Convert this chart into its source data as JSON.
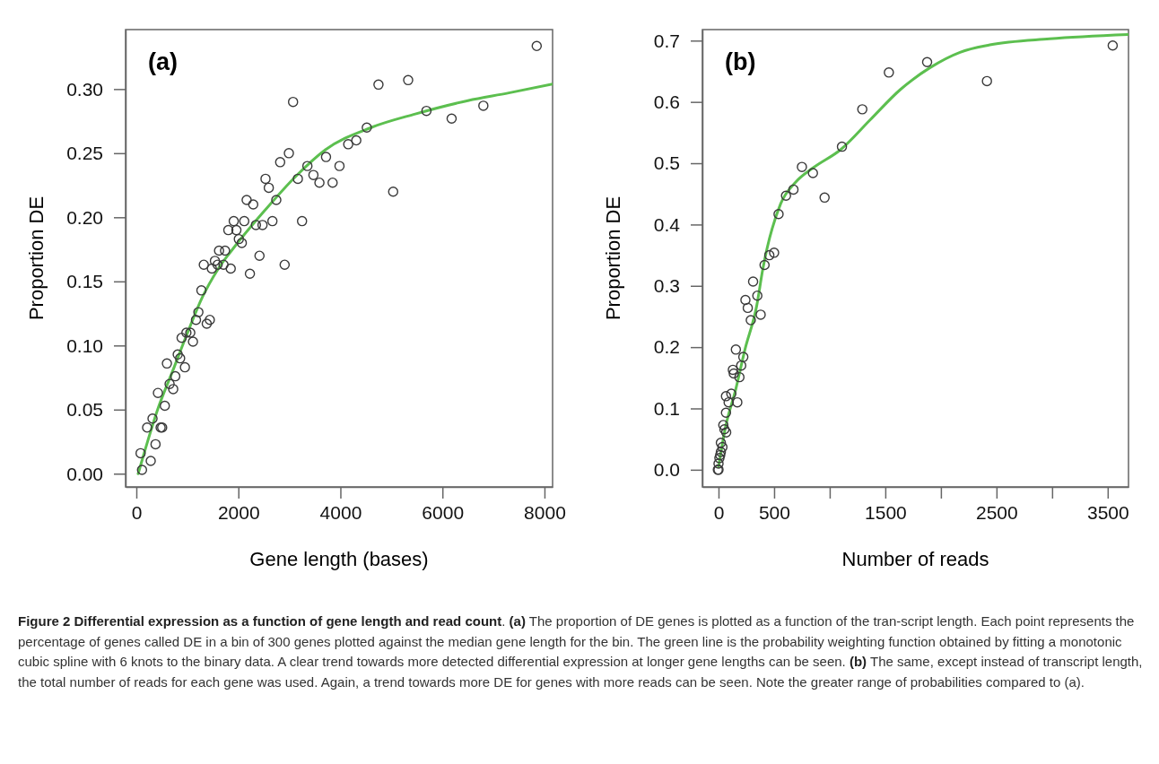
{
  "chart_data": [
    {
      "type": "scatter",
      "title": "(a)",
      "xlabel": "Gene length (bases)",
      "ylabel": "Proportion DE",
      "marker": "circle",
      "xlim": [
        -211,
        8159
      ],
      "ylim": [
        -0.0103,
        0.3464
      ],
      "xticks": [
        0,
        2000,
        4000,
        6000,
        8000
      ],
      "yticks": [
        {
          "value": 0,
          "label": "0.00"
        },
        {
          "value": 0.05,
          "label": "0.05"
        },
        {
          "value": 0.1,
          "label": "0.10"
        },
        {
          "value": 0.15,
          "label": "0.15"
        },
        {
          "value": 0.2,
          "label": "0.20"
        },
        {
          "value": 0.25,
          "label": "0.25"
        },
        {
          "value": 0.3,
          "label": "0.30"
        }
      ],
      "series": [
        {
          "color": "#3a3a3a",
          "x": [
            111,
            83,
            282,
            211,
            317,
            376,
            476,
            506,
            423,
            558,
            599,
            652,
            722,
            763,
            811,
            858,
            952,
            887,
            981,
            1057,
            1110,
            1169,
            1216,
            1380,
            1440,
            1275,
            1322,
            1480,
            1540,
            1592,
            1709,
            1850,
            2226,
            2414,
            2907,
            1621,
            1739,
            2009,
            2067,
            1803,
            1961,
            2344,
            2473,
            1909,
            2115,
            2667,
            3248,
            2162,
            2291,
            2743,
            2532,
            2596,
            3166,
            3589,
            3847,
            3471,
            3353,
            3982,
            3718,
            2819,
            2990,
            5034,
            4153,
            4311,
            4517,
            3072,
            5686,
            6180,
            6802,
            4746,
            5328,
            7848
          ],
          "values": [
            0.003,
            0.016,
            0.01,
            0.036,
            0.043,
            0.023,
            0.036,
            0.036,
            0.063,
            0.053,
            0.086,
            0.07,
            0.066,
            0.076,
            0.093,
            0.09,
            0.083,
            0.106,
            0.11,
            0.11,
            0.103,
            0.12,
            0.126,
            0.117,
            0.12,
            0.143,
            0.163,
            0.16,
            0.166,
            0.163,
            0.163,
            0.16,
            0.156,
            0.17,
            0.163,
            0.174,
            0.174,
            0.183,
            0.18,
            0.19,
            0.19,
            0.194,
            0.194,
            0.197,
            0.197,
            0.197,
            0.197,
            0.2135,
            0.21,
            0.2135,
            0.23,
            0.223,
            0.23,
            0.227,
            0.227,
            0.233,
            0.24,
            0.24,
            0.247,
            0.243,
            0.25,
            0.22,
            0.257,
            0.26,
            0.27,
            0.29,
            0.283,
            0.277,
            0.287,
            0.3035,
            0.307,
            0.3336
          ]
        },
        {
          "type": "line",
          "marker": "none",
          "color": "#5cbf4f",
          "x": [
            35,
            182,
            417,
            711,
            1004,
            1298,
            1592,
            1944,
            2532,
            3119,
            3706,
            4600,
            5468,
            6500,
            7300,
            8159
          ],
          "values": [
            0.0,
            0.02,
            0.05,
            0.08,
            0.11,
            0.138,
            0.159,
            0.178,
            0.206,
            0.2317,
            0.2527,
            0.27,
            0.2806,
            0.291,
            0.297,
            0.304
          ]
        }
      ],
      "annotations": [
        "Figure 2 Differential expression as a function of gene length and read count",
        ". ",
        "(a)",
        " The proportion of DE genes is plotted as a function of the tran-script length. Each point represents the percentage of genes called DE in a bin of 300 genes plotted against the median gene length for the bin. The green line is the probability weighting function obtained by fitting a monotonic cubic spline with 6 knots to the binary data. A clear trend towards more detected differential expression at longer gene lengths can be seen. ",
        "(b)",
        " The same, except instead of transcript length, the total number of reads for each gene was used. Again, a trend towards more DE for genes with more reads can be seen. Note the greater range of probabilities compared to (a)."
      ]
    },
    {
      "type": "scatter",
      "title": "(b)",
      "xlabel": "Number of reads",
      "ylabel": "Proportion DE",
      "marker": "circle",
      "xlim": [
        -145,
        3687
      ],
      "ylim": [
        -0.028,
        0.718
      ],
      "xticks": [
        0,
        500,
        {
          "value": 1000,
          "label": null
        },
        1500,
        {
          "value": 2000,
          "label": null
        },
        2500,
        {
          "value": 3000,
          "label": null
        },
        3500
      ],
      "yticks": [
        {
          "value": 0,
          "label": "0.0"
        },
        0.1,
        0.2,
        0.3,
        0.4,
        0.5,
        0.6,
        0.7
      ],
      "series": [
        {
          "color": "#3a3a3a",
          "x": [
            0,
            -6,
            0,
            8,
            15,
            21,
            35,
            21,
            43,
            53,
            69,
            67,
            91,
            115,
            67,
            169,
            188,
            129,
            137,
            204,
            223,
            156,
            290,
            379,
            263,
            242,
            349,
            311,
            414,
            457,
            500,
            540,
            607,
            674,
            750,
            849,
            954,
            1110,
            1293,
            1532,
            1876,
            2414,
            3545
          ],
          "values": [
            0.0,
            0.0,
            0.01,
            0.019,
            0.024,
            0.029,
            0.037,
            0.044,
            0.073,
            0.066,
            0.061,
            0.093,
            0.11,
            0.124,
            0.12,
            0.11,
            0.151,
            0.163,
            0.157,
            0.17,
            0.184,
            0.196,
            0.244,
            0.253,
            0.264,
            0.277,
            0.284,
            0.307,
            0.334,
            0.35,
            0.354,
            0.417,
            0.447,
            0.457,
            0.494,
            0.484,
            0.444,
            0.527,
            0.588,
            0.648,
            0.665,
            0.634,
            0.692
          ]
        },
        {
          "type": "line",
          "marker": "none",
          "color": "#5cbf4f",
          "x": [
            0,
            61,
            156,
            236,
            344,
            398,
            559,
            693,
            855,
            1097,
            1365,
            1634,
            1903,
            2172,
            2440,
            2978,
            3682
          ],
          "values": [
            0.005,
            0.068,
            0.132,
            0.195,
            0.268,
            0.327,
            0.434,
            0.469,
            0.493,
            0.522,
            0.571,
            0.62,
            0.656,
            0.681,
            0.693,
            0.703,
            0.71
          ]
        }
      ]
    }
  ]
}
